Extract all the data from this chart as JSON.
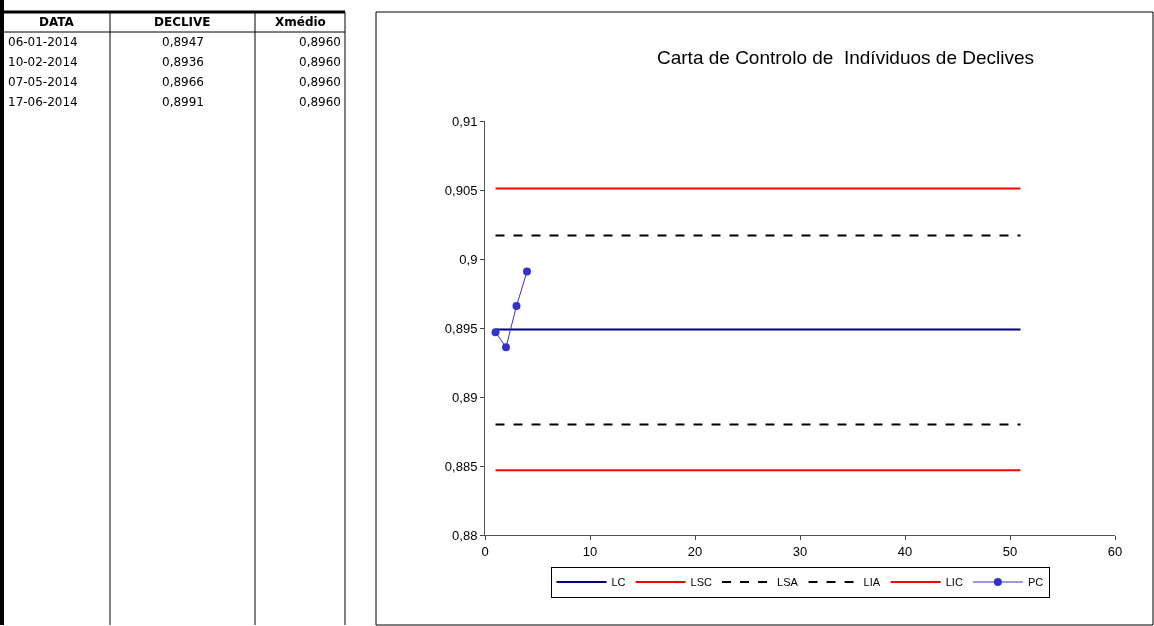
{
  "chart_data": [
    {
      "type": "other",
      "annotations": [
        "DATA",
        "DECLIVE",
        "Xmédio",
        "06-01-2014",
        "0,8947",
        "0,8960",
        "10-02-2014",
        "0,8936",
        "0,8960",
        "07-05-2014",
        "0,8966",
        "0,8960",
        "17-06-2014",
        "0,8991",
        "0,8960"
      ]
    },
    {
      "type": "line",
      "title": "Carta de Controlo de  Indíviduos de Declives",
      "xlim": [
        0,
        60
      ],
      "xticks": [
        0,
        10,
        20,
        30,
        40,
        50,
        60
      ],
      "ylim": [
        0.88,
        0.91
      ],
      "yticks": [
        {
          "value": 0.88,
          "label": "0,88"
        },
        {
          "value": 0.885,
          "label": "0,885"
        },
        {
          "value": 0.89,
          "label": "0,89"
        },
        {
          "value": 0.895,
          "label": "0,895"
        },
        {
          "value": 0.9,
          "label": "0,9"
        },
        {
          "value": 0.905,
          "label": "0,905"
        },
        {
          "value": 0.91,
          "label": "0,91"
        }
      ],
      "legend": "bottom",
      "series": [
        {
          "name": "LC",
          "color": "#000080",
          "x": [
            1,
            51
          ],
          "values": [
            0.8949,
            0.8949
          ],
          "marker": "none",
          "line_style": "solid"
        },
        {
          "name": "LSC",
          "color": "#ff0000",
          "x": [
            1,
            51
          ],
          "values": [
            0.9051,
            0.9051
          ],
          "marker": "none",
          "line_style": "solid"
        },
        {
          "name": "LSA",
          "color": "#000000",
          "x": [
            1,
            51
          ],
          "values": [
            0.9017,
            0.9017
          ],
          "marker": "none",
          "line_style": "dashed"
        },
        {
          "name": "LIA",
          "color": "#000000",
          "x": [
            1,
            51
          ],
          "values": [
            0.888,
            0.888
          ],
          "marker": "none",
          "line_style": "dashed"
        },
        {
          "name": "LIC",
          "color": "#ff0000",
          "x": [
            1,
            51
          ],
          "values": [
            0.8847,
            0.8847
          ],
          "marker": "none",
          "line_style": "solid"
        },
        {
          "name": "PC",
          "color": "#3333cc",
          "x": [
            1,
            2,
            3,
            4
          ],
          "values": [
            0.8947,
            0.8936,
            0.8966,
            0.8991
          ],
          "marker": "circle",
          "line_style": "solid"
        }
      ]
    }
  ]
}
